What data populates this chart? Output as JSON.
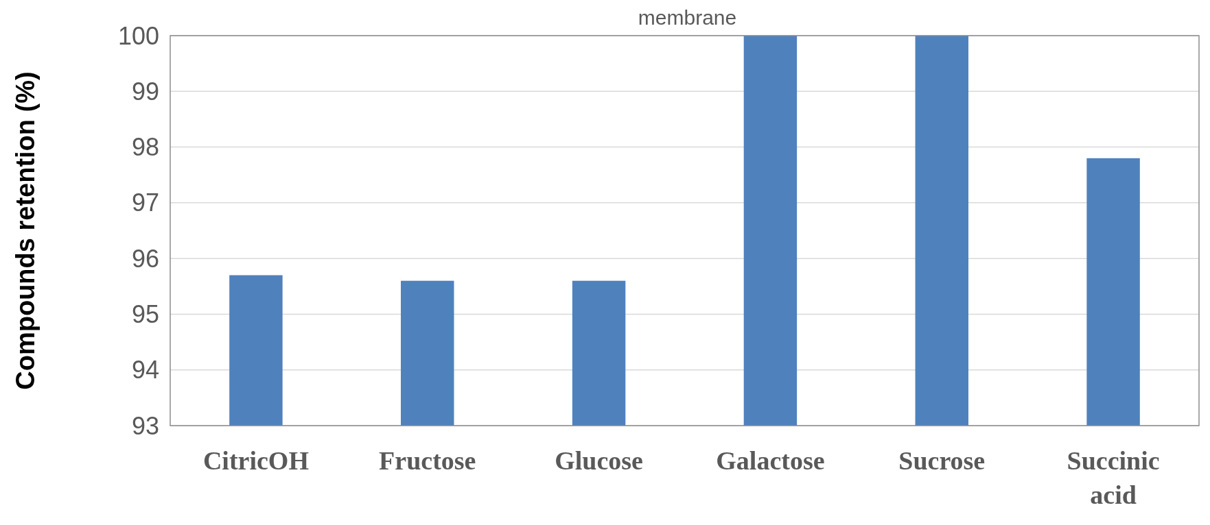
{
  "chart_data": {
    "type": "bar",
    "title": "membrane",
    "ylabel": "Compounds retention (%)",
    "categories": [
      "CitricOH",
      "Fructose",
      "Glucose",
      "Galactose",
      "Sucrose",
      "Succinic acid"
    ],
    "values": [
      95.7,
      95.6,
      95.6,
      100,
      100,
      97.8
    ],
    "color": "#4f81bd",
    "ylim": [
      93,
      100
    ],
    "yticks": [
      93,
      94,
      95,
      96,
      97,
      98,
      99,
      100
    ],
    "grid": "y"
  }
}
